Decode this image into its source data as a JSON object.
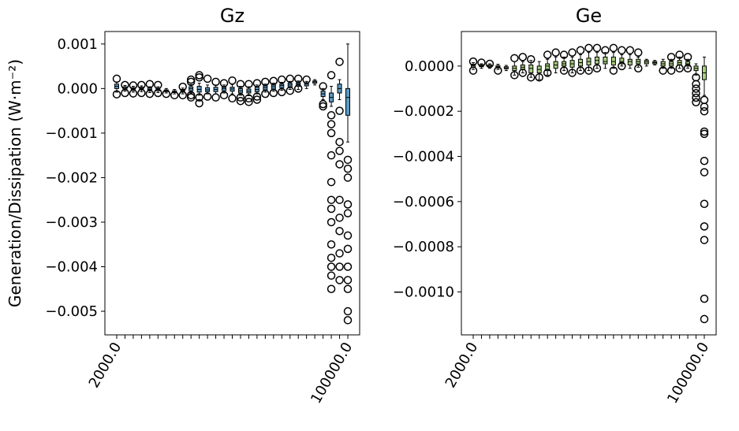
{
  "chart_data": [
    {
      "type": "boxplot",
      "title": "Gz",
      "ylabel": "Generation/Dissipation (W·m⁻²)",
      "categories": [
        "2000.0",
        null,
        null,
        null,
        null,
        null,
        null,
        null,
        null,
        null,
        null,
        null,
        null,
        null,
        null,
        null,
        null,
        null,
        null,
        null,
        null,
        null,
        null,
        null,
        null,
        null,
        null,
        null,
        "100000.0"
      ],
      "ylim": [
        -0.00553,
        0.00128
      ],
      "yticks": [
        {
          "value": 0.001,
          "label": "0.001"
        },
        {
          "value": 0,
          "label": "0.000"
        },
        {
          "value": -0.001,
          "label": "−0.001"
        },
        {
          "value": -0.002,
          "label": "−0.002"
        },
        {
          "value": -0.003,
          "label": "−0.003"
        },
        {
          "value": -0.004,
          "label": "−0.004"
        },
        {
          "value": -0.005,
          "label": "−0.005"
        }
      ],
      "series": [
        {
          "color": "#5b9bc4",
          "stats": [
            [
              -8e-05,
              0,
              5e-05,
              0.0001,
              0.00015
            ],
            [
              -6e-05,
              -2e-05,
              1e-05,
              4e-05,
              7e-05
            ],
            [
              -8e-05,
              -4e-05,
              -1e-05,
              2e-05,
              5e-05
            ],
            [
              -7e-05,
              -3e-05,
              0,
              3e-05,
              6e-05
            ],
            [
              -9e-05,
              -5e-05,
              -2e-05,
              1e-05,
              4e-05
            ],
            [
              -9e-05,
              -5e-05,
              -2e-05,
              1e-05,
              4e-05
            ],
            [
              -0.0001,
              -7e-05,
              -5e-05,
              -3e-05,
              0
            ],
            [
              -0.00012,
              -9e-05,
              -7e-05,
              -5e-05,
              -2e-05
            ],
            [
              -0.00012,
              -8e-05,
              -5e-05,
              -2e-05,
              1e-05
            ],
            [
              -0.0001,
              -5e-05,
              0,
              4e-05,
              9e-05
            ],
            [
              -0.00015,
              -8e-05,
              -2e-05,
              5e-05,
              0.00012
            ],
            [
              -0.00012,
              -7e-05,
              -3e-05,
              2e-05,
              8e-05
            ],
            [
              -0.00012,
              -7e-05,
              -2e-05,
              3e-05,
              8e-05
            ],
            [
              -0.0001,
              -5e-05,
              0,
              3e-05,
              8e-05
            ],
            [
              -0.00012,
              -6e-05,
              -1e-05,
              3e-05,
              9e-05
            ],
            [
              -0.00015,
              -0.0001,
              -5e-05,
              0,
              5e-05
            ],
            [
              -0.00016,
              -0.0001,
              -6e-05,
              -1e-05,
              4e-05
            ],
            [
              -0.00012,
              -7e-05,
              -2e-05,
              3e-05,
              8e-05
            ],
            [
              -8e-05,
              -3e-05,
              2e-05,
              6e-05,
              0.0001
            ],
            [
              -6e-05,
              -1e-05,
              4e-05,
              8e-05,
              0.00012
            ],
            [
              -4e-05,
              2e-05,
              7e-05,
              0.0001,
              0.00014
            ],
            [
              -2e-05,
              4e-05,
              8e-05,
              0.00012,
              0.00016
            ],
            [
              -2e-05,
              5e-05,
              0.0001,
              0.00013,
              0.00017
            ],
            [
              0,
              6e-05,
              0.0001,
              0.00013,
              0.00016
            ],
            [
              8e-05,
              0.00012,
              0.00015,
              0.00017,
              0.0002
            ],
            [
              -0.00025,
              -0.00018,
              -0.00012,
              -6e-05,
              0
            ],
            [
              -0.0004,
              -0.0003,
              -0.0002,
              -0.0001,
              5e-05
            ],
            [
              -0.00025,
              -0.0001,
              0,
              0.0001,
              0.0002
            ],
            [
              -0.0012,
              -0.0006,
              -0.0002,
              0,
              0.001
            ]
          ],
          "fliers": [
            [
              0.00022,
              -0.00013
            ],
            [
              8e-05,
              -0.0001
            ],
            [
              7e-05,
              -0.00011
            ],
            [
              8e-05,
              -0.0001
            ],
            [
              0.0001,
              -0.00012
            ],
            [
              8e-05,
              -0.0001
            ],
            [
              -0.00012
            ],
            [
              -0.00015
            ],
            [
              -0.00015,
              4e-05
            ],
            [
              0.0002,
              0.00015,
              -0.00015,
              -0.0002
            ],
            [
              0.0003,
              0.00025,
              -0.0002,
              -0.00033
            ],
            [
              0.00022,
              -0.00018
            ],
            [
              0.00015,
              -0.0002
            ],
            [
              0.00012,
              -0.00015
            ],
            [
              0.00018,
              -0.00022
            ],
            [
              0.0001,
              -0.0002,
              -0.00028
            ],
            [
              0.0001,
              -0.00022,
              -0.0003
            ],
            [
              0.00012,
              -0.00018,
              -0.00025
            ],
            [
              0.00015,
              -0.00012
            ],
            [
              0.00017,
              -0.0001
            ],
            [
              0.0002,
              -8e-05
            ],
            [
              0.00022,
              -5e-05
            ],
            [
              0.00022,
              0
            ],
            [
              0.0002
            ],
            [],
            [
              5e-05,
              -0.00035,
              -0.0004
            ],
            [
              0.0003,
              -0.0006,
              -0.0008,
              -0.001,
              -0.0015,
              -0.0021,
              -0.0025,
              -0.0027,
              -0.003,
              -0.0035,
              -0.0038,
              -0.004,
              -0.0042,
              -0.0045
            ],
            [
              0.0006,
              -0.0005,
              -0.0012,
              -0.0014,
              -0.0017,
              -0.0025,
              -0.0029,
              -0.0032,
              -0.0037,
              -0.004,
              -0.0043
            ],
            [
              -0.0016,
              -0.0018,
              -0.002,
              -0.0026,
              -0.0028,
              -0.0033,
              -0.0036,
              -0.004,
              -0.0043,
              -0.0045,
              -0.005,
              -0.0052
            ]
          ]
        }
      ]
    },
    {
      "type": "boxplot",
      "title": "Ge",
      "categories": [
        "2000.0",
        null,
        null,
        null,
        null,
        null,
        null,
        null,
        null,
        null,
        null,
        null,
        null,
        null,
        null,
        null,
        null,
        null,
        null,
        null,
        null,
        null,
        null,
        null,
        null,
        null,
        null,
        null,
        "100000.0"
      ],
      "ylim": [
        -0.00119,
        0.000153
      ],
      "yticks": [
        {
          "value": 0,
          "label": "0.0000"
        },
        {
          "value": -0.0002,
          "label": "−0.0002"
        },
        {
          "value": -0.0004,
          "label": "−0.0004"
        },
        {
          "value": -0.0006,
          "label": "−0.0006"
        },
        {
          "value": -0.0008,
          "label": "−0.0008"
        },
        {
          "value": -0.001,
          "label": "−0.0010"
        }
      ],
      "series": [
        {
          "color": "#a6cf7e",
          "stats": [
            [
              -1.5e-05,
              -5e-06,
              2e-06,
              8e-06,
              1.5e-05
            ],
            [
              -1e-05,
              -3e-06,
              2e-06,
              6e-06,
              1e-05
            ],
            [
              -1e-05,
              -4e-06,
              0,
              5e-06,
              1e-05
            ],
            [
              -1.5e-05,
              -8e-06,
              -3e-06,
              2e-06,
              8e-06
            ],
            [
              -2e-05,
              -1.2e-05,
              -8e-06,
              -3e-06,
              3e-06
            ],
            [
              -4e-05,
              -2e-05,
              -1e-05,
              0,
              2e-05
            ],
            [
              -3e-05,
              -1.5e-05,
              -5e-06,
              5e-06,
              2e-05
            ],
            [
              -5e-05,
              -3e-05,
              -1e-05,
              5e-06,
              2.5e-05
            ],
            [
              -6e-05,
              -3e-05,
              -1.5e-05,
              0,
              2e-05
            ],
            [
              -4e-05,
              -2e-05,
              0,
              1e-05,
              3e-05
            ],
            [
              -3e-05,
              -1e-05,
              5e-06,
              2e-05,
              4e-05
            ],
            [
              -2e-05,
              0,
              1e-05,
              2e-05,
              4e-05
            ],
            [
              -3e-05,
              -5e-06,
              1e-05,
              2.5e-05,
              4e-05
            ],
            [
              -2e-05,
              0,
              1.5e-05,
              3e-05,
              5e-05
            ],
            [
              -2e-05,
              5e-06,
              2e-05,
              3.5e-05,
              6e-05
            ],
            [
              -1e-05,
              1e-05,
              2.5e-05,
              4e-05,
              6e-05
            ],
            [
              -1e-05,
              1e-05,
              2e-05,
              4e-05,
              6e-05
            ],
            [
              -1e-05,
              5e-06,
              2e-05,
              4e-05,
              6e-05
            ],
            [
              0,
              1e-05,
              2e-05,
              3.5e-05,
              5e-05
            ],
            [
              -1e-05,
              5e-06,
              2e-05,
              3e-05,
              5e-05
            ],
            [
              -5e-06,
              1e-05,
              2e-05,
              3e-05,
              4e-05
            ],
            [
              0,
              1e-05,
              1.8e-05,
              2.5e-05,
              3e-05
            ],
            [
              5e-06,
              1e-05,
              1.5e-05,
              2e-05,
              2.5e-05
            ],
            [
              -1e-05,
              0,
              1e-05,
              2e-05,
              3e-05
            ],
            [
              -1e-05,
              0,
              1e-05,
              2e-05,
              3e-05
            ],
            [
              -1e-05,
              5e-06,
              1.5e-05,
              2.5e-05,
              4e-05
            ],
            [
              -1e-05,
              0,
              1e-05,
              2e-05,
              3e-05
            ],
            [
              -4e-05,
              -2e-05,
              -1e-05,
              0,
              1e-05
            ],
            [
              -0.00013,
              -6e-05,
              -3e-05,
              0,
              4e-05
            ]
          ],
          "fliers": [
            [
              2e-05,
              -2e-05
            ],
            [
              1.5e-05
            ],
            [
              1e-05
            ],
            [
              -2e-05
            ],
            [],
            [
              3.5e-05,
              -4e-05
            ],
            [
              4e-05,
              -3e-05
            ],
            [
              3e-05,
              -5e-05
            ],
            [
              -5e-05
            ],
            [
              5e-05,
              -3e-05
            ],
            [
              6e-05
            ],
            [
              5e-05,
              -2e-05
            ],
            [
              6e-05,
              -3e-05
            ],
            [
              7e-05,
              -2e-05
            ],
            [
              8e-05,
              -2e-05
            ],
            [
              8e-05,
              -1e-05
            ],
            [
              7e-05
            ],
            [
              8e-05,
              -2e-05
            ],
            [
              7e-05,
              0
            ],
            [
              7e-05
            ],
            [
              6e-05,
              -1e-05
            ],
            [],
            [],
            [
              -2e-05
            ],
            [
              4e-05,
              -2e-05
            ],
            [
              5e-05,
              -1e-05
            ],
            [
              4e-05,
              -1e-05
            ],
            [
              -5e-05,
              -8e-05,
              -0.0001,
              -0.00012,
              -0.00014,
              -0.00016
            ],
            [
              -0.00015,
              -0.00018,
              -0.0002,
              -0.00029,
              -0.0003,
              -0.00042,
              -0.00047,
              -0.00061,
              -0.00071,
              -0.00077,
              -0.00103,
              -0.00112
            ]
          ]
        }
      ]
    }
  ]
}
